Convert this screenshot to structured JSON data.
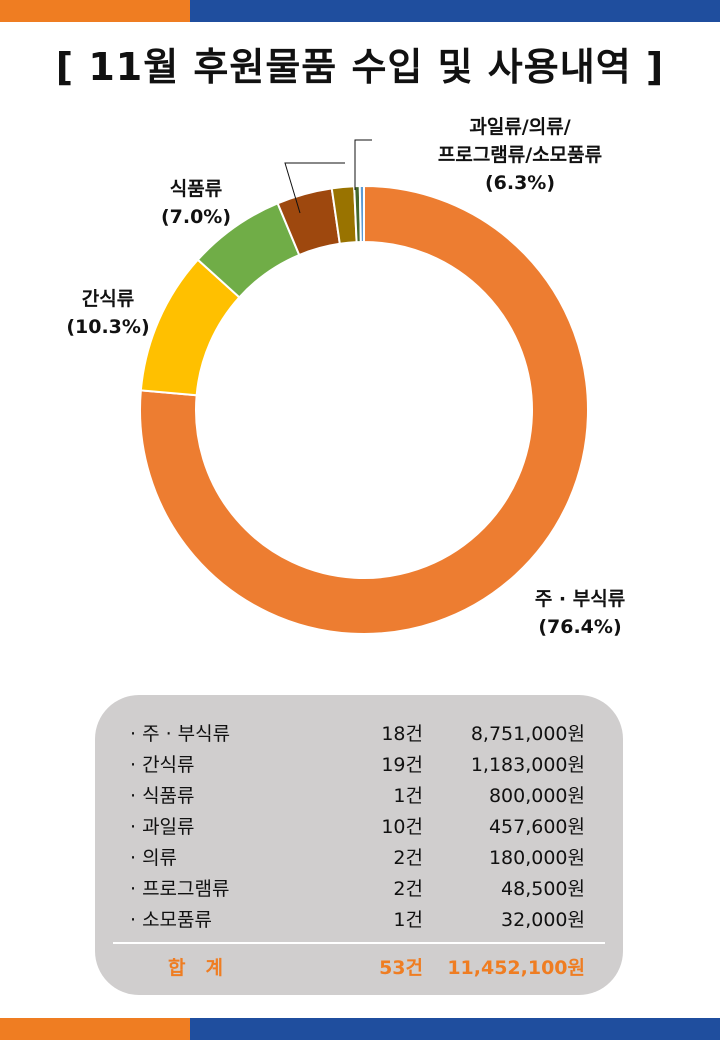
{
  "title": "[ 11월 후원물품 수입 및 사용내역 ]",
  "colors": {
    "orange": "#ef7d22",
    "blue": "#1f4e9e",
    "panel": "#d0cece"
  },
  "chart_data": {
    "type": "pie",
    "donut": true,
    "slices": [
      {
        "name": "주·부식류",
        "value": 76.4,
        "color": "#ed7d31"
      },
      {
        "name": "간식류",
        "value": 10.3,
        "color": "#ffc000"
      },
      {
        "name": "식품류",
        "value": 7.0,
        "color": "#70ad47"
      },
      {
        "name": "과일류",
        "value": 4.0,
        "color": "#9e480e"
      },
      {
        "name": "의류",
        "value": 1.6,
        "color": "#997300"
      },
      {
        "name": "프로그램류",
        "value": 0.4,
        "color": "#43682b"
      },
      {
        "name": "소모품류",
        "value": 0.3,
        "color": "#5b9bd5"
      }
    ],
    "labels": {
      "main": [
        "주 · 부식류",
        "(76.4%)"
      ],
      "snack": [
        "간식류",
        "(10.3%)"
      ],
      "food": [
        "식품류",
        "(7.0%)"
      ],
      "others": [
        "과일류/의류/",
        "프로그램류/소모품류",
        "(6.3%)"
      ]
    }
  },
  "summary": {
    "rows": [
      {
        "name": "· 주 · 부식류",
        "count": "18건",
        "amount": "8,751,000원"
      },
      {
        "name": "· 간식류",
        "count": "19건",
        "amount": "1,183,000원"
      },
      {
        "name": "· 식품류",
        "count": "1건",
        "amount": "800,000원"
      },
      {
        "name": "· 과일류",
        "count": "10건",
        "amount": "457,600원"
      },
      {
        "name": "· 의류",
        "count": "2건",
        "amount": "180,000원"
      },
      {
        "name": "· 프로그램류",
        "count": "2건",
        "amount": "48,500원"
      },
      {
        "name": "· 소모품류",
        "count": "1건",
        "amount": "32,000원"
      }
    ],
    "total": {
      "label": "합계",
      "count": "53건",
      "amount": "11,452,100원"
    }
  }
}
